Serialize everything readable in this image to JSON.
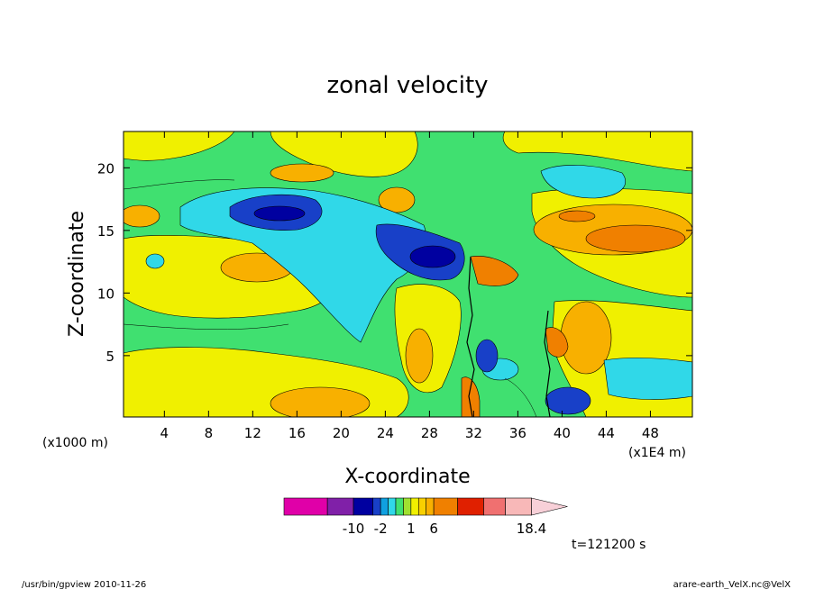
{
  "chart_data": {
    "type": "heatmap",
    "title": "zonal velocity",
    "xlabel": "X-coordinate",
    "ylabel": "Z-coordinate",
    "x_unit_left": "(x1000 m)",
    "x_unit_right": "(x1E4 m)",
    "xlim": [
      0.3,
      51.8
    ],
    "ylim": [
      0.1,
      22.9
    ],
    "x_ticks": [
      4,
      8,
      12,
      16,
      20,
      24,
      28,
      32,
      36,
      40,
      44,
      48
    ],
    "y_ticks": [
      5,
      10,
      15,
      20
    ],
    "colorbar": {
      "colors": [
        "#e000a8",
        "#8020a8",
        "#0000a0",
        "#1840c8",
        "#10a0e0",
        "#30d8e8",
        "#40e070",
        "#a0e030",
        "#f0f000",
        "#f8d000",
        "#f8b000",
        "#f08000",
        "#e02000",
        "#f07070",
        "#f8b8b8",
        "#f8d0d8"
      ],
      "tick_labels": [
        "-10",
        "-2",
        "1",
        "6",
        "18.4"
      ]
    },
    "time_label": "t=121200 s"
  },
  "footer": {
    "left": "/usr/bin/gpview   2010-11-26",
    "right": "arare-earth_VelX.nc@VelX"
  }
}
